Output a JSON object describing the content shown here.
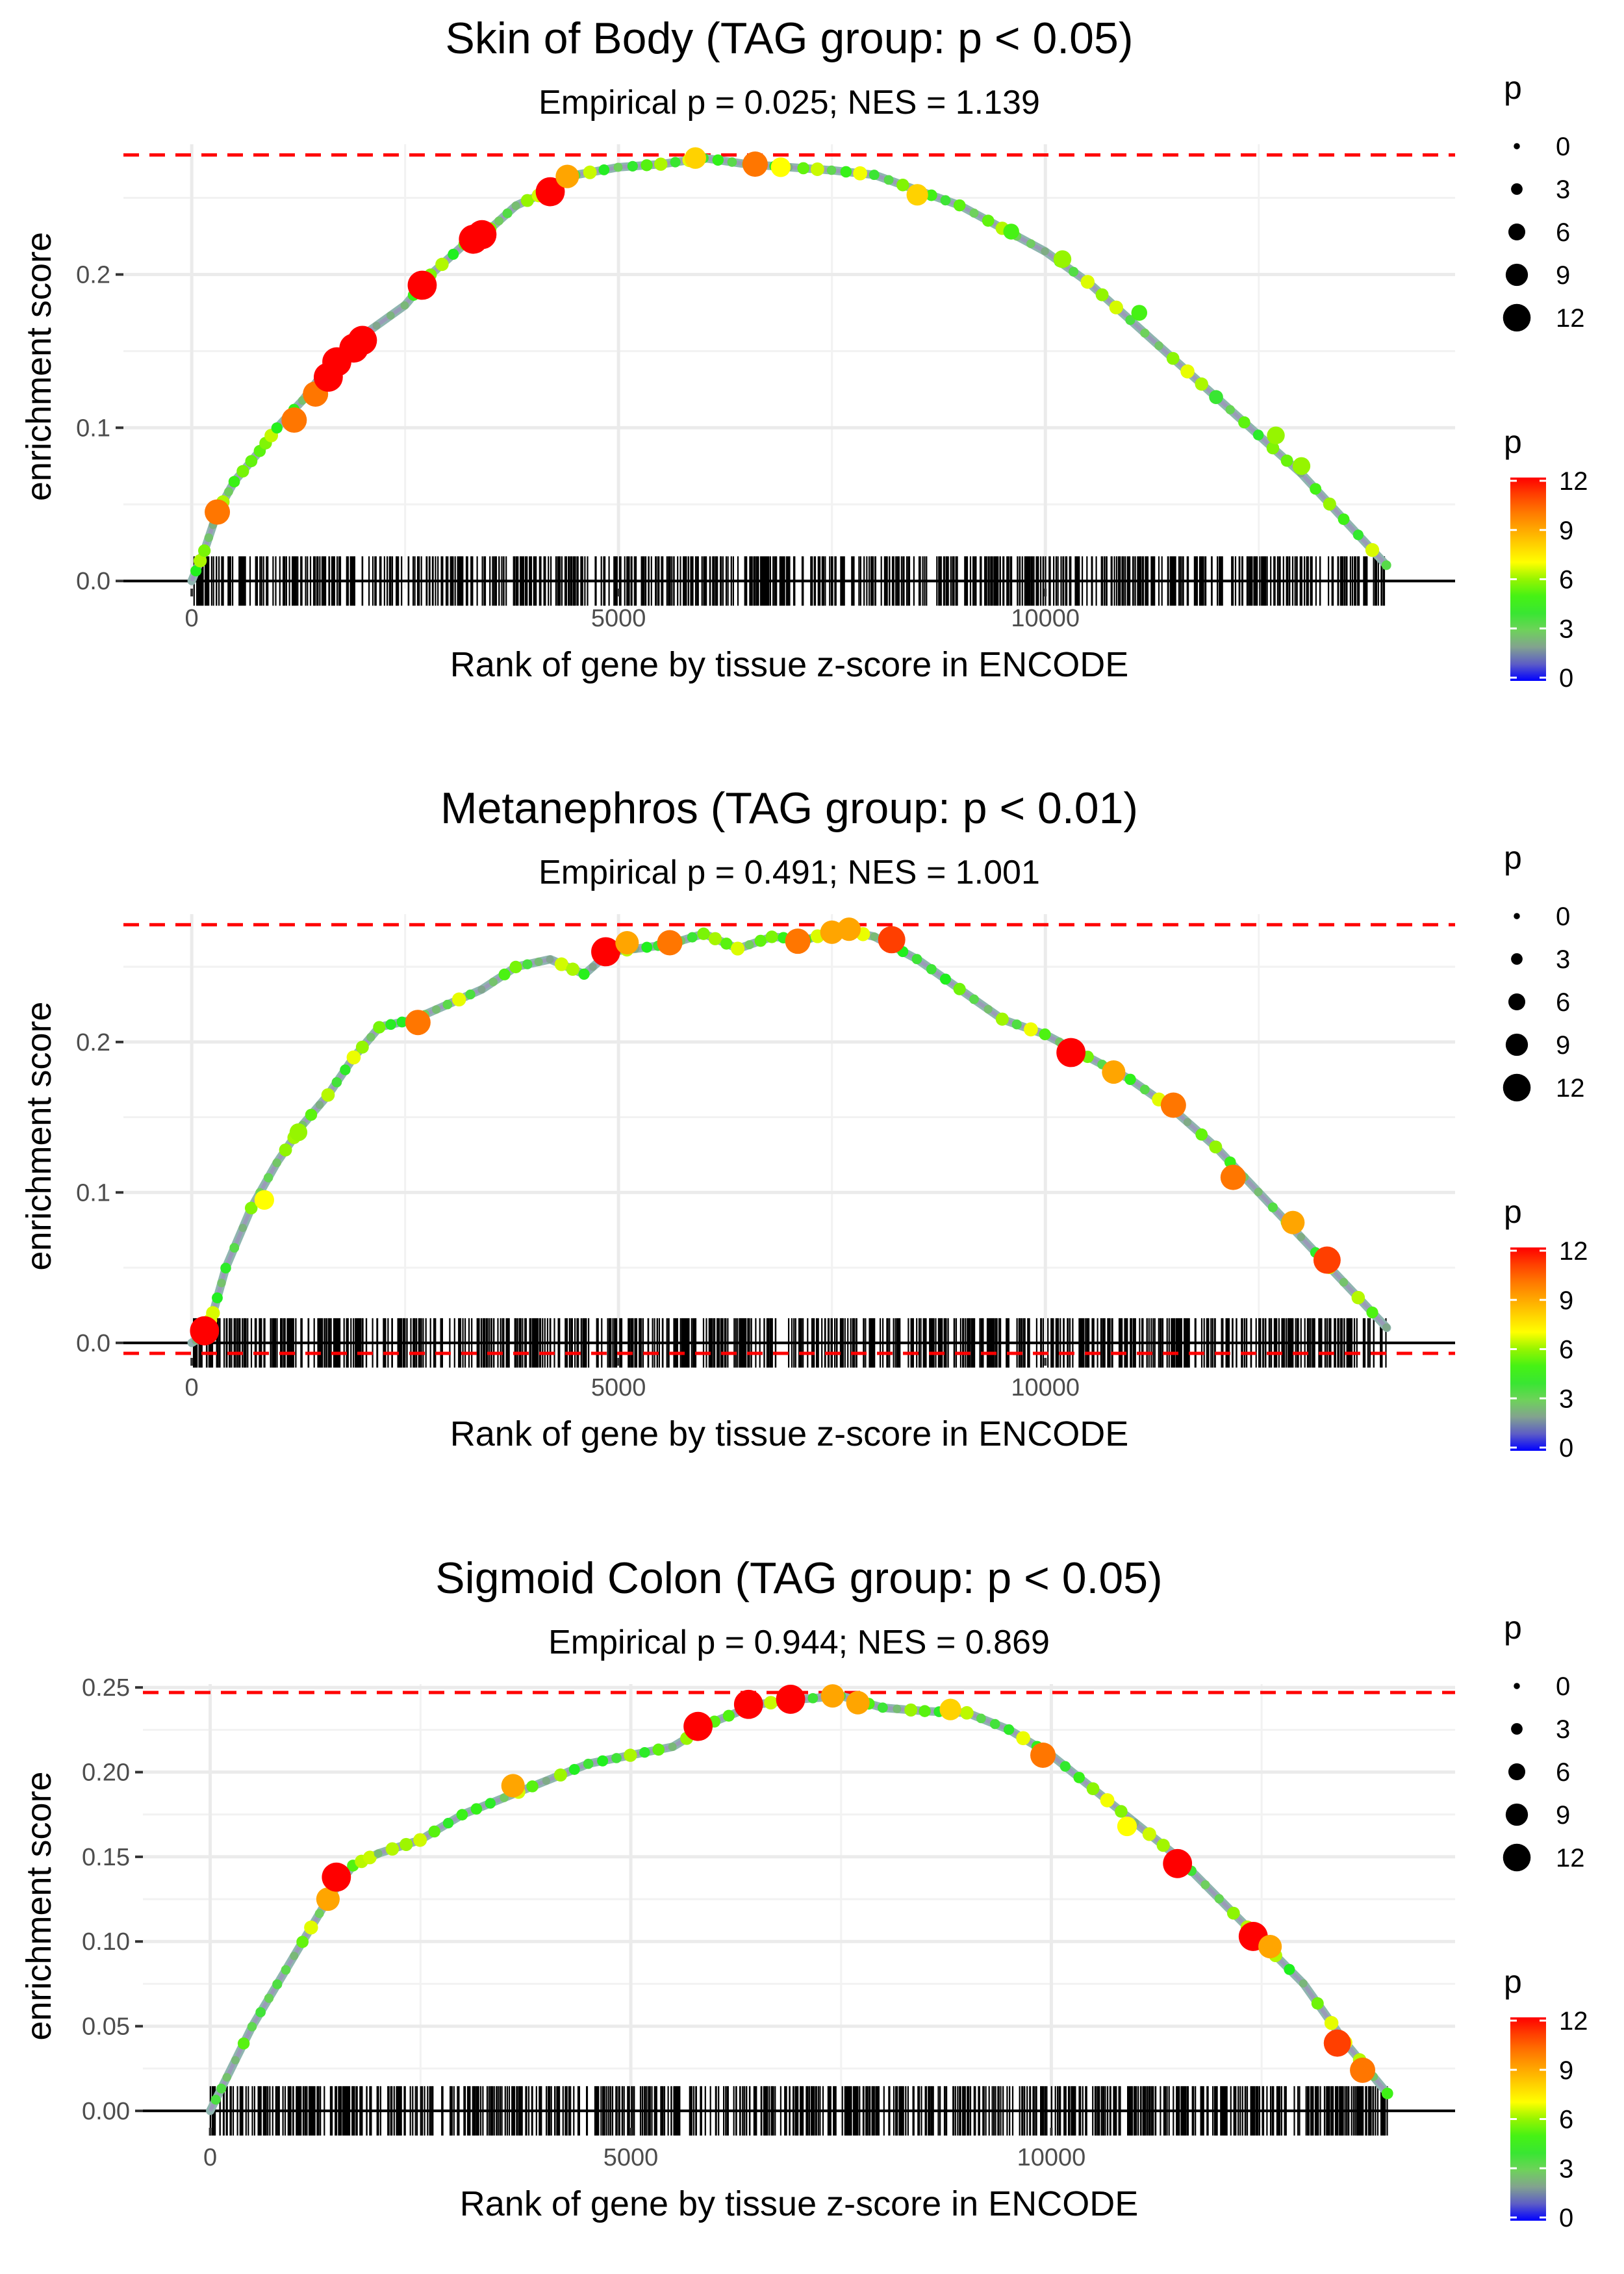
{
  "chart_data": [
    {
      "type": "line",
      "title": "Skin of Body (TAG group: p < 0.05)",
      "subtitle": "Empirical p = 0.025; NES = 1.139",
      "xlabel": "Rank of gene by tissue z-score in ENCODE",
      "ylabel": "enrichment score",
      "xlim": [
        -800,
        14800
      ],
      "ylim": [
        -0.005,
        0.285
      ],
      "x_ticks": [
        0,
        5000,
        10000
      ],
      "x_tick_labels": [
        "0",
        "5000",
        "10000"
      ],
      "y_ticks": [
        0.0,
        0.1,
        0.2
      ],
      "y_tick_labels": [
        "0.0",
        "0.1",
        "0.2"
      ],
      "max_es_line": 0.278,
      "min_es_line": null,
      "n_genes": 14000,
      "curve": [
        [
          0,
          0
        ],
        [
          150,
          0.02
        ],
        [
          300,
          0.045
        ],
        [
          500,
          0.065
        ],
        [
          800,
          0.085
        ],
        [
          1000,
          0.1
        ],
        [
          1300,
          0.118
        ],
        [
          1600,
          0.14
        ],
        [
          2000,
          0.16
        ],
        [
          2500,
          0.18
        ],
        [
          2800,
          0.2
        ],
        [
          3200,
          0.22
        ],
        [
          3500,
          0.23
        ],
        [
          3800,
          0.245
        ],
        [
          4200,
          0.255
        ],
        [
          4500,
          0.265
        ],
        [
          5000,
          0.27
        ],
        [
          5500,
          0.272
        ],
        [
          6000,
          0.276
        ],
        [
          6500,
          0.272
        ],
        [
          7000,
          0.27
        ],
        [
          7500,
          0.268
        ],
        [
          8000,
          0.265
        ],
        [
          8500,
          0.255
        ],
        [
          9000,
          0.245
        ],
        [
          9500,
          0.23
        ],
        [
          10000,
          0.215
        ],
        [
          10500,
          0.195
        ],
        [
          11000,
          0.17
        ],
        [
          11500,
          0.145
        ],
        [
          12000,
          0.12
        ],
        [
          12500,
          0.095
        ],
        [
          13000,
          0.07
        ],
        [
          13500,
          0.04
        ],
        [
          14000,
          0.01
        ]
      ],
      "points": [
        [
          300,
          0.045,
          10
        ],
        [
          1200,
          0.105,
          10
        ],
        [
          1450,
          0.122,
          10
        ],
        [
          1600,
          0.133,
          12
        ],
        [
          1700,
          0.143,
          12
        ],
        [
          1900,
          0.152,
          12
        ],
        [
          2000,
          0.157,
          12
        ],
        [
          2700,
          0.193,
          12
        ],
        [
          3300,
          0.223,
          12
        ],
        [
          3400,
          0.226,
          12
        ],
        [
          4200,
          0.254,
          12
        ],
        [
          4400,
          0.264,
          9
        ],
        [
          5900,
          0.276,
          8
        ],
        [
          6600,
          0.272,
          10
        ],
        [
          6900,
          0.27,
          7
        ],
        [
          8500,
          0.252,
          8
        ],
        [
          9600,
          0.228,
          5
        ],
        [
          10200,
          0.21,
          6
        ],
        [
          11100,
          0.175,
          5
        ],
        [
          12000,
          0.12,
          4
        ],
        [
          12700,
          0.095,
          6
        ],
        [
          13000,
          0.075,
          6
        ]
      ],
      "legend_size": {
        "title": "p",
        "labels": [
          "0",
          "3",
          "6",
          "9",
          "12"
        ]
      },
      "legend_color": {
        "title": "p",
        "labels": [
          "12",
          "9",
          "6",
          "3",
          "0"
        ]
      }
    },
    {
      "type": "line",
      "title": "Metanephros (TAG group: p < 0.01)",
      "subtitle": "Empirical p = 0.491; NES = 1.001",
      "xlabel": "Rank of gene by tissue z-score in ENCODE",
      "ylabel": "enrichment score",
      "xlim": [
        -800,
        14800
      ],
      "ylim": [
        -0.01,
        0.285
      ],
      "x_ticks": [
        0,
        5000,
        10000
      ],
      "x_tick_labels": [
        "0",
        "5000",
        "10000"
      ],
      "y_ticks": [
        0.0,
        0.1,
        0.2
      ],
      "y_tick_labels": [
        "0.0",
        "0.1",
        "0.2"
      ],
      "max_es_line": 0.278,
      "min_es_line": -0.007,
      "n_genes": 14000,
      "curve": [
        [
          0,
          0.0
        ],
        [
          150,
          0.005
        ],
        [
          250,
          0.02
        ],
        [
          400,
          0.05
        ],
        [
          700,
          0.09
        ],
        [
          1000,
          0.12
        ],
        [
          1300,
          0.145
        ],
        [
          1600,
          0.165
        ],
        [
          1900,
          0.19
        ],
        [
          2200,
          0.21
        ],
        [
          2600,
          0.215
        ],
        [
          3000,
          0.225
        ],
        [
          3400,
          0.235
        ],
        [
          3800,
          0.25
        ],
        [
          4200,
          0.255
        ],
        [
          4600,
          0.245
        ],
        [
          4900,
          0.26
        ],
        [
          5200,
          0.262
        ],
        [
          5600,
          0.265
        ],
        [
          6000,
          0.272
        ],
        [
          6400,
          0.262
        ],
        [
          6800,
          0.27
        ],
        [
          7200,
          0.268
        ],
        [
          7600,
          0.275
        ],
        [
          8000,
          0.27
        ],
        [
          8500,
          0.255
        ],
        [
          9000,
          0.235
        ],
        [
          9500,
          0.215
        ],
        [
          10000,
          0.205
        ],
        [
          10500,
          0.19
        ],
        [
          11000,
          0.175
        ],
        [
          11500,
          0.155
        ],
        [
          12000,
          0.13
        ],
        [
          12500,
          0.1
        ],
        [
          13000,
          0.07
        ],
        [
          13500,
          0.04
        ],
        [
          14000,
          0.01
        ]
      ],
      "points": [
        [
          150,
          0.008,
          12
        ],
        [
          850,
          0.095,
          7
        ],
        [
          1250,
          0.14,
          6
        ],
        [
          2650,
          0.213,
          10
        ],
        [
          4850,
          0.26,
          12
        ],
        [
          5100,
          0.266,
          9
        ],
        [
          5600,
          0.266,
          10
        ],
        [
          7100,
          0.267,
          10
        ],
        [
          7500,
          0.273,
          9
        ],
        [
          7700,
          0.275,
          9
        ],
        [
          8200,
          0.268,
          11
        ],
        [
          10300,
          0.193,
          12
        ],
        [
          10800,
          0.18,
          9
        ],
        [
          11500,
          0.158,
          10
        ],
        [
          12200,
          0.11,
          10
        ],
        [
          12900,
          0.08,
          9
        ],
        [
          13300,
          0.055,
          11
        ]
      ],
      "legend_size": {
        "title": "p",
        "labels": [
          "0",
          "3",
          "6",
          "9",
          "12"
        ]
      },
      "legend_color": {
        "title": "p",
        "labels": [
          "12",
          "9",
          "6",
          "3",
          "0"
        ]
      }
    },
    {
      "type": "line",
      "title": "Sigmoid Colon (TAG group: p < 0.05)",
      "subtitle": "Empirical p = 0.944; NES = 0.869",
      "xlabel": "Rank of gene by tissue z-score in ENCODE",
      "ylabel": "enrichment score",
      "xlim": [
        -800,
        14800
      ],
      "ylim": [
        -0.01,
        0.252
      ],
      "x_ticks": [
        0,
        5000,
        10000
      ],
      "x_tick_labels": [
        "0",
        "5000",
        "10000"
      ],
      "y_ticks": [
        0.0,
        0.05,
        0.1,
        0.15,
        0.2,
        0.25
      ],
      "y_tick_labels": [
        "0.00",
        "0.05",
        "0.10",
        "0.15",
        "0.20",
        "0.25"
      ],
      "max_es_line": 0.247,
      "min_es_line": null,
      "n_genes": 14000,
      "curve": [
        [
          0,
          0
        ],
        [
          200,
          0.02
        ],
        [
          500,
          0.05
        ],
        [
          800,
          0.075
        ],
        [
          1100,
          0.1
        ],
        [
          1400,
          0.125
        ],
        [
          1700,
          0.145
        ],
        [
          2000,
          0.152
        ],
        [
          2500,
          0.16
        ],
        [
          3000,
          0.175
        ],
        [
          3500,
          0.185
        ],
        [
          4000,
          0.195
        ],
        [
          4500,
          0.205
        ],
        [
          5000,
          0.21
        ],
        [
          5500,
          0.215
        ],
        [
          6000,
          0.23
        ],
        [
          6500,
          0.24
        ],
        [
          7000,
          0.243
        ],
        [
          7500,
          0.245
        ],
        [
          8000,
          0.238
        ],
        [
          8500,
          0.236
        ],
        [
          9000,
          0.235
        ],
        [
          9500,
          0.225
        ],
        [
          10000,
          0.21
        ],
        [
          10500,
          0.19
        ],
        [
          11000,
          0.17
        ],
        [
          11500,
          0.15
        ],
        [
          12000,
          0.125
        ],
        [
          12500,
          0.1
        ],
        [
          13000,
          0.075
        ],
        [
          13500,
          0.04
        ],
        [
          14000,
          0.01
        ]
      ],
      "points": [
        [
          1400,
          0.125,
          9
        ],
        [
          1500,
          0.138,
          12
        ],
        [
          3600,
          0.192,
          9
        ],
        [
          5800,
          0.227,
          12
        ],
        [
          6400,
          0.24,
          12
        ],
        [
          6900,
          0.243,
          12
        ],
        [
          7400,
          0.245,
          9
        ],
        [
          7700,
          0.241,
          9
        ],
        [
          8800,
          0.237,
          8
        ],
        [
          9900,
          0.21,
          10
        ],
        [
          10900,
          0.168,
          7
        ],
        [
          11500,
          0.146,
          12
        ],
        [
          12400,
          0.103,
          12
        ],
        [
          12600,
          0.097,
          9
        ],
        [
          13400,
          0.04,
          11
        ],
        [
          13700,
          0.024,
          10
        ]
      ],
      "legend_size": {
        "title": "p",
        "labels": [
          "0",
          "3",
          "6",
          "9",
          "12"
        ]
      },
      "legend_color": {
        "title": "p",
        "labels": [
          "12",
          "9",
          "6",
          "3",
          "0"
        ]
      }
    }
  ]
}
